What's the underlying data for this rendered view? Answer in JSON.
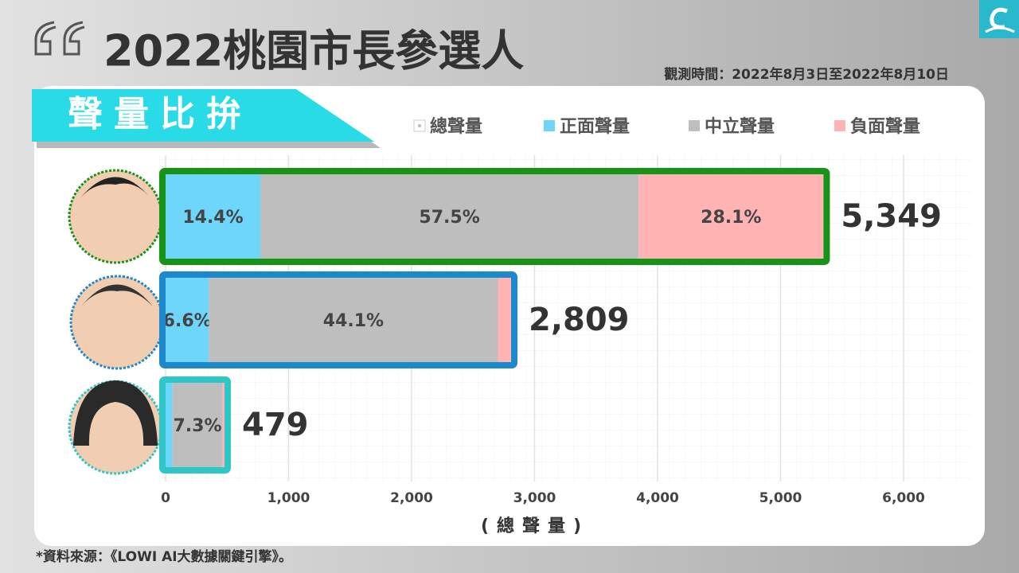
{
  "chart_data": {
    "type": "bar",
    "title": "2022桃園市長參選人",
    "subtitle": "觀測時間：2022年8月3日至2022年8月10日",
    "banner": "聲量比拚",
    "x_label": "(總聲量)",
    "source": "*資料來源：《LOWI AI大數據關鍵引擎》。",
    "categories": [
      null,
      null,
      null
    ],
    "bar_outline_colors": [
      "#179417",
      "#1e88cc",
      "#2ec6c6"
    ],
    "series": [
      {
        "name": "總聲量",
        "color": "#ffffff",
        "values": [
          5349,
          2809,
          479
        ],
        "value_labels": [
          "5,349",
          "2,809",
          "479"
        ]
      },
      {
        "name": "正面聲量",
        "color": "#6fd6fb",
        "values": [
          14.4,
          6.6,
          1.0
        ],
        "value_labels": [
          "14.4%",
          "6.6%",
          null
        ]
      },
      {
        "name": "中立聲量",
        "color": "#bebebe",
        "values": [
          57.5,
          44.1,
          7.3
        ],
        "value_labels": [
          "57.5%",
          "44.1%",
          "7.3%"
        ]
      },
      {
        "name": "負面聲量",
        "color": "#ffb3b3",
        "values": [
          28.1,
          2.0,
          0.3
        ],
        "value_labels": [
          "28.1%",
          null,
          null
        ]
      }
    ],
    "xlim": [
      0,
      6000
    ],
    "xticks": [
      0,
      {
        "value": 1000,
        "label": "1,000"
      },
      {
        "value": 2000,
        "label": "2,000"
      },
      {
        "value": 3000,
        "label": "3,000"
      },
      {
        "value": 4000,
        "label": "4,000"
      },
      {
        "value": 5000,
        "label": "5,000"
      },
      {
        "value": 6000,
        "label": "6,000"
      }
    ],
    "grid": true
  }
}
